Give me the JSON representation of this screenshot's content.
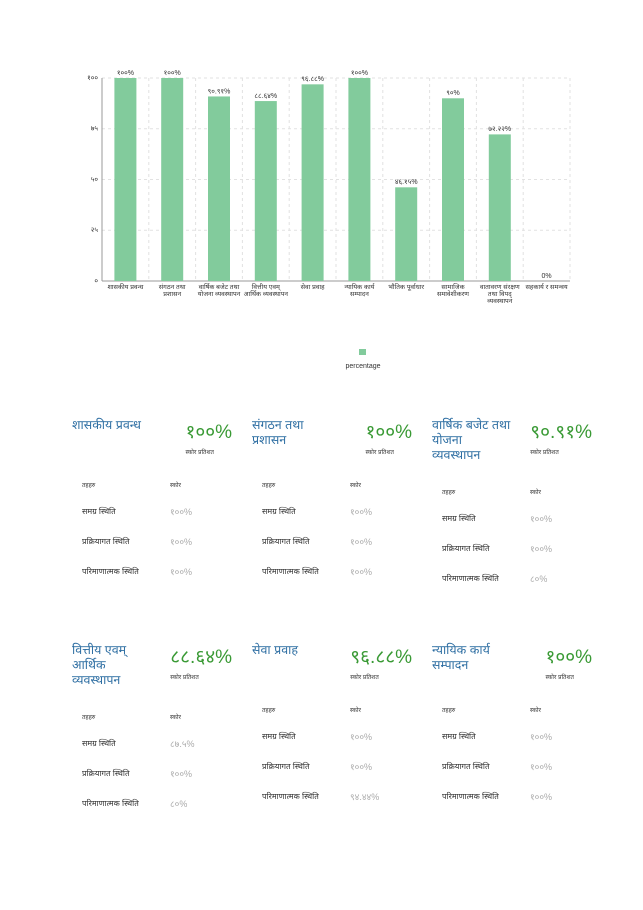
{
  "chart_data": {
    "type": "bar",
    "categories": [
      "शासकीय प्रवन्ध",
      "संगठन तथा प्रशासन",
      "वार्षिक बजेट तथा योजना व्यवस्थापन",
      "वित्तीय एवम् आर्थिक व्यवस्थापन",
      "सेवा प्रवाह",
      "न्यायिक कार्य सम्पादन",
      "भौतिक पूर्वाधार",
      "सामाजिक समावेशीकरण",
      "वातावरण संरक्षण तथा विपद् व्यवस्थापन",
      "सहकार्य र समन्वय"
    ],
    "series": [
      {
        "name": "percentage",
        "color": "#82cb9c",
        "values": [
          100,
          100,
          90.91,
          88.64,
          96.88,
          100,
          46.15,
          90,
          72.22,
          0
        ],
        "value_labels": [
          "१००%",
          "१००%",
          "९०.९१%",
          "८८.६४%",
          "९६.८८%",
          "१००%",
          "४६.१५%",
          "९०%",
          "७२.२२%",
          "0%"
        ]
      }
    ],
    "ylim": [
      0,
      100
    ],
    "yticks": [
      {
        "value": 0,
        "label": "०"
      },
      {
        "value": 25,
        "label": "२५"
      },
      {
        "value": 50,
        "label": "५०"
      },
      {
        "value": 75,
        "label": "७५"
      },
      {
        "value": 100,
        "label": "१००"
      }
    ],
    "grid": true,
    "legend": "bottom"
  },
  "cards": [
    {
      "title": "शासकीय प्रवन्ध",
      "score": "१००%",
      "score_label": "स्कोर प्रतिशत",
      "header": [
        "तहहरु",
        "स्कोर"
      ],
      "rows": [
        [
          "समग्र स्थिति",
          "१००%"
        ],
        [
          "प्रक्रियागत स्थिति",
          "१००%"
        ],
        [
          "परिमाणात्मक स्थिति",
          "१००%"
        ]
      ]
    },
    {
      "title": "संगठन तथा प्रशासन",
      "score": "१००%",
      "score_label": "स्कोर प्रतिशत",
      "header": [
        "तहहरु",
        "स्कोर"
      ],
      "rows": [
        [
          "समग्र स्थिति",
          "१००%"
        ],
        [
          "प्रक्रियागत स्थिति",
          "१००%"
        ],
        [
          "परिमाणात्मक स्थिति",
          "१००%"
        ]
      ]
    },
    {
      "title": "वार्षिक बजेट तथा योजना व्यवस्थापन",
      "score": "९०.९१%",
      "score_label": "स्कोर प्रतिशत",
      "header": [
        "तहहरु",
        "स्कोर"
      ],
      "rows": [
        [
          "समग्र स्थिति",
          "१००%"
        ],
        [
          "प्रक्रियागत स्थिति",
          "१००%"
        ],
        [
          "परिमाणात्मक स्थिति",
          "८०%"
        ]
      ]
    },
    {
      "title": "वित्तीय एवम् आर्थिक व्यवस्थापन",
      "score": "८८.६४%",
      "score_label": "स्कोर प्रतिशत",
      "header": [
        "तहहरु",
        "स्कोर"
      ],
      "rows": [
        [
          "समग्र स्थिति",
          "८७.५%"
        ],
        [
          "प्रक्रियागत स्थिति",
          "१००%"
        ],
        [
          "परिमाणात्मक स्थिति",
          "८०%"
        ]
      ]
    },
    {
      "title": "सेवा प्रवाह",
      "score": "९६.८८%",
      "score_label": "स्कोर प्रतिशत",
      "header": [
        "तहहरु",
        "स्कोर"
      ],
      "rows": [
        [
          "समग्र स्थिति",
          "१००%"
        ],
        [
          "प्रक्रियागत स्थिति",
          "१००%"
        ],
        [
          "परिमाणात्मक स्थिति",
          "९४.४४%"
        ]
      ]
    },
    {
      "title": "न्यायिक कार्य सम्पादन",
      "score": "१००%",
      "score_label": "स्कोर प्रतिशत",
      "header": [
        "तहहरु",
        "स्कोर"
      ],
      "rows": [
        [
          "समग्र स्थिति",
          "१००%"
        ],
        [
          "प्रक्रियागत स्थिति",
          "१००%"
        ],
        [
          "परिमाणात्मक स्थिति",
          "१००%"
        ]
      ]
    }
  ]
}
